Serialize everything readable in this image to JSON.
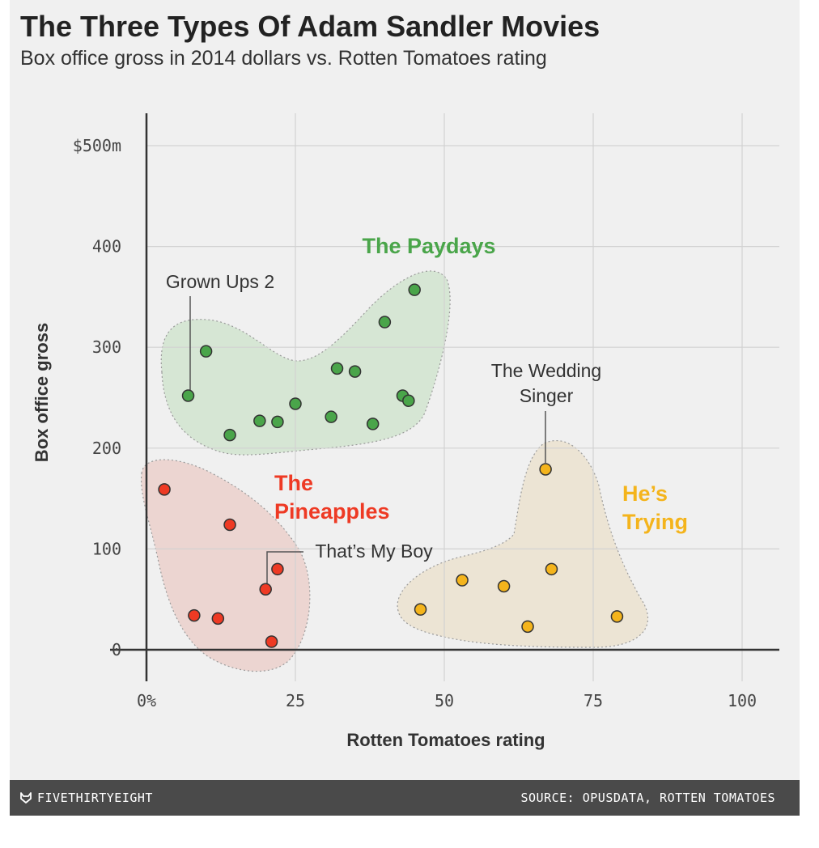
{
  "title": "The Three Types Of Adam Sandler Movies",
  "subtitle": "Box office gross in 2014 dollars vs. Rotten Tomatoes rating",
  "footer": {
    "brand": "FIVETHIRTYEIGHT",
    "brand_icon": "fox-icon",
    "source": "SOURCE: OPUSDATA, ROTTEN TOMATOES"
  },
  "chart_data": {
    "type": "scatter",
    "xlabel": "Rotten Tomatoes rating",
    "ylabel": "Box office gross",
    "xlim": [
      0,
      105
    ],
    "ylim": [
      0,
      500
    ],
    "x_ticks": [
      {
        "value": 0,
        "label": "0%"
      },
      {
        "value": 25,
        "label": "25"
      },
      {
        "value": 50,
        "label": "50"
      },
      {
        "value": 75,
        "label": "75"
      },
      {
        "value": 100,
        "label": "100"
      }
    ],
    "y_ticks": [
      {
        "value": 0,
        "label": "0"
      },
      {
        "value": 100,
        "label": "100"
      },
      {
        "value": 200,
        "label": "200"
      },
      {
        "value": 300,
        "label": "300"
      },
      {
        "value": 400,
        "label": "400"
      },
      {
        "value": 500,
        "label": "$500m"
      }
    ],
    "grid": true,
    "series": [
      {
        "name": "The Paydays",
        "color": "#4aa54a",
        "blob_color": "#d6e6d4",
        "points": [
          {
            "x": 7,
            "y": 252
          },
          {
            "x": 10,
            "y": 296
          },
          {
            "x": 14,
            "y": 213
          },
          {
            "x": 19,
            "y": 227
          },
          {
            "x": 22,
            "y": 226
          },
          {
            "x": 25,
            "y": 244
          },
          {
            "x": 31,
            "y": 231
          },
          {
            "x": 32,
            "y": 279
          },
          {
            "x": 35,
            "y": 276
          },
          {
            "x": 38,
            "y": 224
          },
          {
            "x": 40,
            "y": 325
          },
          {
            "x": 43,
            "y": 252
          },
          {
            "x": 44,
            "y": 247
          },
          {
            "x": 45,
            "y": 357
          }
        ]
      },
      {
        "name": "The Pineapples",
        "color": "#ee3a24",
        "blob_color": "#ecd5d1",
        "points": [
          {
            "x": 3,
            "y": 159
          },
          {
            "x": 8,
            "y": 34
          },
          {
            "x": 12,
            "y": 31
          },
          {
            "x": 14,
            "y": 124
          },
          {
            "x": 20,
            "y": 60
          },
          {
            "x": 21,
            "y": 8
          },
          {
            "x": 22,
            "y": 80
          }
        ]
      },
      {
        "name": "He’s Trying",
        "color": "#f4b41c",
        "blob_color": "#ece4d4",
        "points": [
          {
            "x": 46,
            "y": 40
          },
          {
            "x": 53,
            "y": 69
          },
          {
            "x": 60,
            "y": 63
          },
          {
            "x": 64,
            "y": 23
          },
          {
            "x": 67,
            "y": 179
          },
          {
            "x": 68,
            "y": 80
          },
          {
            "x": 79,
            "y": 33
          }
        ]
      }
    ],
    "group_labels": [
      {
        "series": "The Paydays",
        "lines": [
          "The Paydays"
        ],
        "color": "#4aa54a"
      },
      {
        "series": "The Pineapples",
        "lines": [
          "The",
          "Pineapples"
        ],
        "color": "#ee3a24"
      },
      {
        "series": "He’s Trying",
        "lines": [
          "He’s",
          "Trying"
        ],
        "color": "#f4b41c"
      }
    ],
    "annotations": [
      {
        "lines": [
          "Grown Ups 2"
        ],
        "point": {
          "x": 7,
          "y": 252
        }
      },
      {
        "lines": [
          "The Wedding",
          "Singer"
        ],
        "point": {
          "x": 67,
          "y": 179
        }
      },
      {
        "lines": [
          "That’s My Boy"
        ],
        "point": {
          "x": 20,
          "y": 60
        }
      }
    ]
  }
}
